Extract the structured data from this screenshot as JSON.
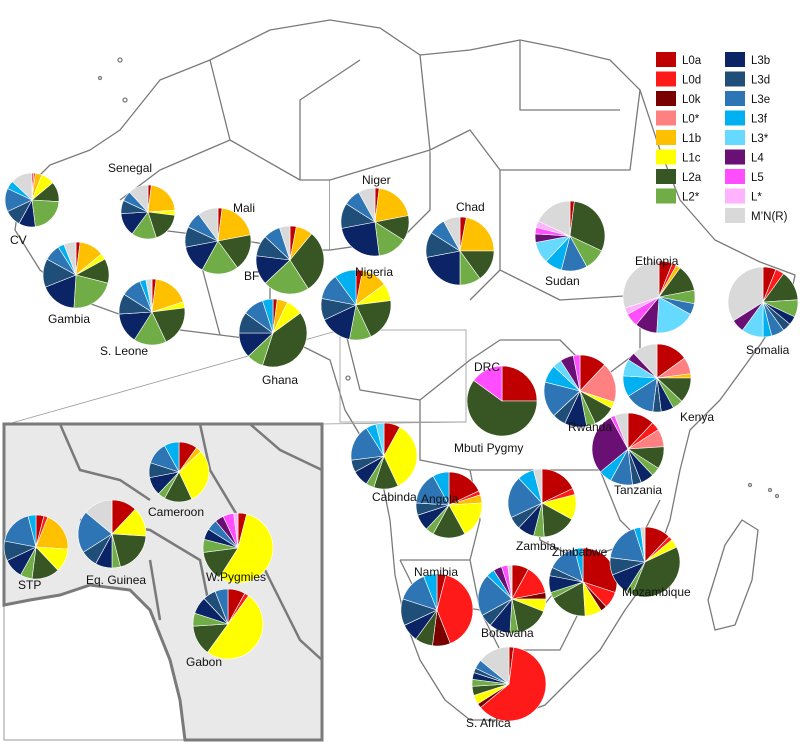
{
  "legend": [
    {
      "key": "L0a",
      "label": "L0a",
      "color": "#c00000"
    },
    {
      "key": "L0d",
      "label": "L0d",
      "color": "#ff1a1a"
    },
    {
      "key": "L0k",
      "label": "L0k",
      "color": "#7a0000"
    },
    {
      "key": "L0s",
      "label": "L0*",
      "color": "#ff8080"
    },
    {
      "key": "L1b",
      "label": "L1b",
      "color": "#ffc000"
    },
    {
      "key": "L1c",
      "label": "L1c",
      "color": "#ffff00"
    },
    {
      "key": "L2a",
      "label": "L2a",
      "color": "#375623"
    },
    {
      "key": "L2s",
      "label": "L2*",
      "color": "#70ad47"
    },
    {
      "key": "L3b",
      "label": "L3b",
      "color": "#0b2466"
    },
    {
      "key": "L3d",
      "label": "L3d",
      "color": "#1f4e79"
    },
    {
      "key": "L3e",
      "label": "L3e",
      "color": "#2e75b6"
    },
    {
      "key": "L3f",
      "label": "L3f",
      "color": "#00b0f0"
    },
    {
      "key": "L3s",
      "label": "L3*",
      "color": "#66d9ff"
    },
    {
      "key": "L4",
      "label": "L4",
      "color": "#6a0f73"
    },
    {
      "key": "L5",
      "label": "L5",
      "color": "#ff4dff"
    },
    {
      "key": "Ls",
      "label": "L*",
      "color": "#ffb3ff"
    },
    {
      "key": "MNR",
      "label": "M’N(R)",
      "color": "#d9d9d9"
    }
  ],
  "populations": [
    {
      "id": "cv",
      "label": "CV",
      "values": {
        "L0a": 1,
        "L0d": 1,
        "L1b": 4,
        "L1c": 8,
        "L2a": 12,
        "L2s": 22,
        "L3b": 10,
        "L3d": 10,
        "L3e": 14,
        "L3f": 5,
        "MNR": 13
      }
    },
    {
      "id": "senegal",
      "label": "Senegal",
      "values": {
        "L0a": 2,
        "L1b": 22,
        "L1c": 3,
        "L2a": 18,
        "L2s": 15,
        "L3b": 14,
        "L3d": 8,
        "L3e": 6,
        "MNR": 12
      }
    },
    {
      "id": "gambia",
      "label": "Gambia",
      "values": {
        "L0a": 2,
        "L1b": 12,
        "L1c": 3,
        "L2a": 12,
        "L2s": 22,
        "L3b": 18,
        "L3d": 14,
        "L3e": 8,
        "L3f": 3,
        "MNR": 6
      }
    },
    {
      "id": "mali",
      "label": "Mali",
      "values": {
        "L0a": 2,
        "L1b": 20,
        "L2a": 18,
        "L2s": 18,
        "L3b": 14,
        "L3d": 10,
        "L3e": 8,
        "MNR": 10
      }
    },
    {
      "id": "sleone",
      "label": "S. Leone",
      "values": {
        "L0a": 2,
        "L1b": 18,
        "L1c": 3,
        "L2a": 20,
        "L2s": 16,
        "L3b": 15,
        "L3d": 10,
        "L3e": 10,
        "L3f": 3,
        "MNR": 3
      }
    },
    {
      "id": "bf",
      "label": "BF",
      "values": {
        "L0a": 3,
        "L1b": 8,
        "L2a": 30,
        "L2s": 22,
        "L3b": 14,
        "L3d": 10,
        "L3e": 8,
        "MNR": 5
      }
    },
    {
      "id": "ghana",
      "label": "Ghana",
      "values": {
        "L0a": 2,
        "L1b": 5,
        "L1c": 8,
        "L2a": 40,
        "L2s": 8,
        "L3b": 12,
        "L3d": 10,
        "L3e": 10,
        "L3f": 5
      }
    },
    {
      "id": "niger",
      "label": "Niger",
      "values": {
        "L0a": 2,
        "L1b": 20,
        "L2a": 12,
        "L2s": 14,
        "L3b": 24,
        "L3d": 12,
        "L3e": 8,
        "MNR": 8
      }
    },
    {
      "id": "nigeria",
      "label": "Nigeria",
      "values": {
        "L0a": 3,
        "L1b": 12,
        "L1c": 8,
        "L2a": 20,
        "L2s": 10,
        "L3b": 15,
        "L3d": 10,
        "L3e": 12,
        "L3f": 10
      }
    },
    {
      "id": "chad",
      "label": "Chad",
      "values": {
        "L0a": 3,
        "L1b": 22,
        "L2a": 15,
        "L2s": 10,
        "L3b": 22,
        "L3d": 12,
        "L3e": 8,
        "MNR": 8
      }
    },
    {
      "id": "sudan",
      "label": "Sudan",
      "values": {
        "L0a": 2,
        "L2a": 30,
        "L2s": 10,
        "L3e": 12,
        "L3f": 8,
        "L3s": 10,
        "L4": 4,
        "L5": 3,
        "Ls": 3,
        "MNR": 18
      }
    },
    {
      "id": "ethiopia",
      "label": "Ethiopia",
      "values": {
        "L0a": 6,
        "L0d": 2,
        "L1b": 2,
        "L2a": 12,
        "L2s": 6,
        "L3e": 5,
        "L3s": 18,
        "L4": 10,
        "L5": 6,
        "Ls": 3,
        "MNR": 30
      }
    },
    {
      "id": "somalia",
      "label": "Somalia",
      "values": {
        "L0a": 6,
        "L0d": 4,
        "L2a": 14,
        "L2s": 8,
        "L3b": 4,
        "L3d": 4,
        "L3e": 6,
        "L3f": 4,
        "L3s": 10,
        "L4": 6,
        "MNR": 34
      }
    },
    {
      "id": "kenya",
      "label": "Kenya",
      "values": {
        "L0a": 15,
        "L0s": 8,
        "L1b": 2,
        "L2a": 12,
        "L2s": 5,
        "L3b": 6,
        "L3d": 4,
        "L3e": 14,
        "L3f": 10,
        "L3s": 8,
        "L4": 4,
        "MNR": 12
      }
    },
    {
      "id": "rwanda",
      "label": "Rwanda",
      "values": {
        "L0a": 12,
        "L0s": 18,
        "L1c": 3,
        "L2a": 10,
        "L2s": 4,
        "L3b": 10,
        "L3d": 6,
        "L3e": 16,
        "L3f": 8,
        "L3s": 4,
        "L4": 6,
        "L5": 3
      }
    },
    {
      "id": "drc",
      "label": "DRC",
      "values": {
        "L0a": 25,
        "L2a": 60,
        "L5": 15
      }
    },
    {
      "id": "tanzania",
      "label": "Tanzania",
      "values": {
        "L0a": 12,
        "L0d": 4,
        "L0s": 8,
        "L2a": 10,
        "L2s": 4,
        "L3b": 6,
        "L3d": 4,
        "L3e": 10,
        "L3f": 6,
        "L4": 28,
        "L5": 2,
        "MNR": 6
      }
    },
    {
      "id": "cabinda",
      "label": "Cabinda",
      "values": {
        "L0a": 8,
        "L1c": 35,
        "L2a": 12,
        "L2s": 4,
        "L3b": 8,
        "L3d": 6,
        "L3e": 18,
        "L3f": 5,
        "L3s": 4
      }
    },
    {
      "id": "angola",
      "label": "Angola",
      "values": {
        "L0a": 18,
        "L0d": 2,
        "L1b": 4,
        "L1c": 18,
        "L2a": 16,
        "L2s": 4,
        "L3b": 8,
        "L3d": 6,
        "L3e": 16,
        "L3f": 8
      }
    },
    {
      "id": "zambia",
      "label": "Zambia",
      "values": {
        "L0a": 18,
        "L0d": 3,
        "L1c": 12,
        "L2a": 16,
        "L2s": 5,
        "L3b": 8,
        "L3d": 6,
        "L3e": 20,
        "L3f": 8,
        "MNR": 4
      }
    },
    {
      "id": "zimbabwe",
      "label": "Zimbabwe",
      "values": {
        "L0a": 30,
        "L0d": 8,
        "L0k": 3,
        "L1c": 8,
        "L2a": 18,
        "L2s": 3,
        "L3b": 8,
        "L3d": 4,
        "L3e": 14,
        "L3f": 4
      }
    },
    {
      "id": "mozambique",
      "label": "Mozambique",
      "values": {
        "L0a": 12,
        "L0d": 2,
        "L1c": 4,
        "L2a": 38,
        "L2s": 3,
        "L3b": 10,
        "L3d": 8,
        "L3e": 18,
        "L3f": 3,
        "MNR": 2
      }
    },
    {
      "id": "namibia",
      "label": "Namibia",
      "values": {
        "L0a": 4,
        "L0d": 40,
        "L0k": 8,
        "L2a": 8,
        "L3b": 8,
        "L3d": 12,
        "L3e": 14,
        "L3f": 6
      }
    },
    {
      "id": "botswana",
      "label": "Botswana",
      "values": {
        "L0a": 8,
        "L0d": 14,
        "L0k": 3,
        "L1c": 6,
        "L2a": 16,
        "L2s": 4,
        "L3b": 10,
        "L3d": 6,
        "L3e": 20,
        "L3f": 4,
        "L4": 4,
        "L5": 3,
        "MNR": 2
      }
    },
    {
      "id": "safrica",
      "label": "S. Africa",
      "values": {
        "L0a": 2,
        "L0d": 62,
        "L0k": 2,
        "L1c": 4,
        "L2a": 4,
        "L2s": 3,
        "L3b": 3,
        "L3d": 2,
        "L3e": 4,
        "MNR": 14
      }
    },
    {
      "id": "cameroon",
      "label": "Cameroon",
      "values": {
        "L0a": 10,
        "L1b": 3,
        "L1c": 30,
        "L2a": 15,
        "L2s": 4,
        "L3b": 10,
        "L3d": 8,
        "L3e": 12,
        "L3f": 8
      }
    },
    {
      "id": "stp",
      "label": "STP",
      "values": {
        "L0a": 4,
        "L0d": 2,
        "L1b": 20,
        "L1c": 12,
        "L2a": 14,
        "L2s": 6,
        "L3b": 10,
        "L3d": 10,
        "L3e": 18,
        "L3f": 4
      }
    },
    {
      "id": "eqguinea",
      "label": "Eq. Guinea",
      "values": {
        "L0a": 12,
        "L1c": 14,
        "L2a": 20,
        "L2s": 4,
        "L3b": 8,
        "L3d": 8,
        "L3e": 20,
        "MNR": 14
      }
    },
    {
      "id": "wpygmies",
      "label": "W.Pygmies",
      "values": {
        "L0a": 4,
        "L1c": 55,
        "L2a": 14,
        "L2s": 6,
        "L3b": 5,
        "L3e": 5,
        "L4": 4,
        "L5": 5,
        "Ls": 2
      }
    },
    {
      "id": "gabon",
      "label": "Gabon",
      "values": {
        "L0a": 8,
        "L0d": 2,
        "L1c": 50,
        "L2a": 14,
        "L2s": 6,
        "L3b": 8,
        "L3d": 6,
        "L3e": 6
      }
    }
  ],
  "annotations": {
    "mbuti": "Mbuti Pygmy"
  }
}
